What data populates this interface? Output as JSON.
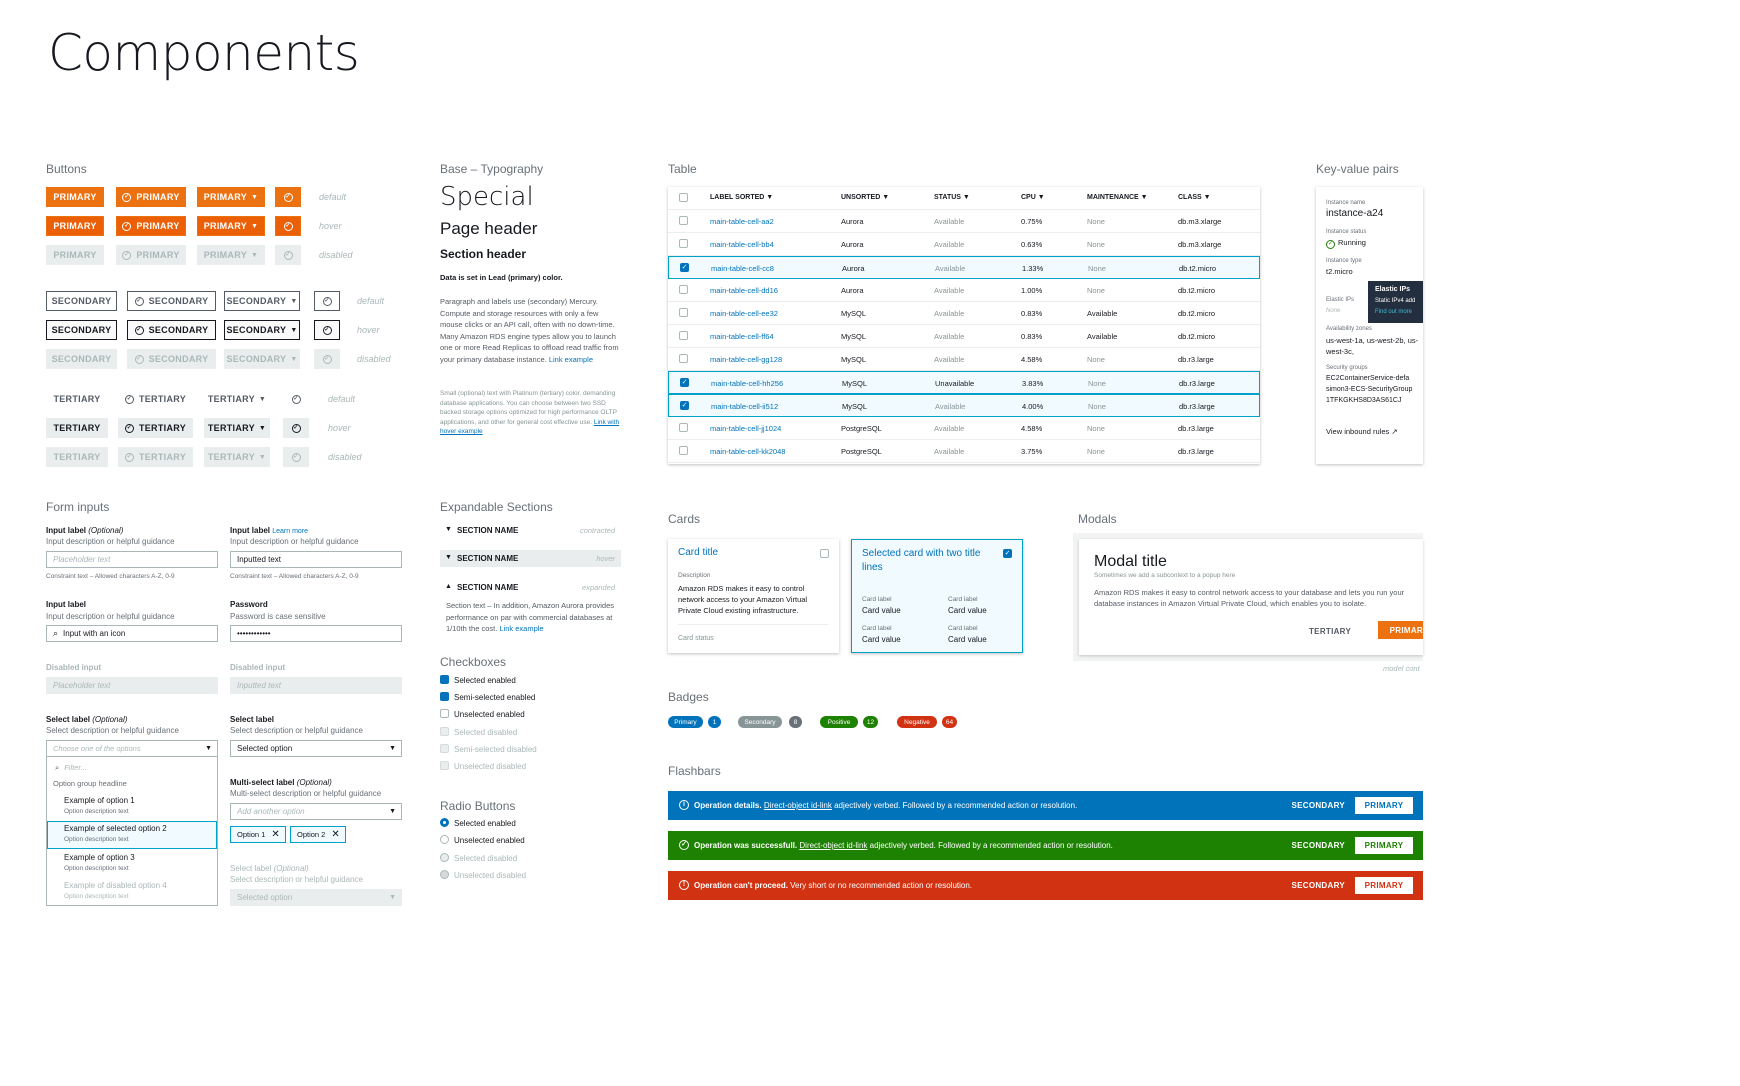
{
  "page_title": "Components",
  "sections": {
    "buttons": "Buttons",
    "typography": "Base – Typography",
    "table": "Table",
    "kv": "Key-value pairs",
    "form_inputs": "Form inputs",
    "expandable": "Expandable Sections",
    "checkboxes": "Checkboxes",
    "radio": "Radio Buttons",
    "cards": "Cards",
    "modals": "Modals",
    "badges": "Badges",
    "flashbars": "Flashbars"
  },
  "buttons": {
    "primary": "PRIMARY",
    "secondary": "SECONDARY",
    "tertiary": "TERTIARY",
    "states": {
      "default": "default",
      "hover": "hover",
      "disabled": "disabled"
    }
  },
  "typography": {
    "special": "Special",
    "page_header": "Page header",
    "section_header": "Section header",
    "lead": "Data is set in Lead (primary) color.",
    "para": "Paragraph and labels use (secondary) Mercury. Compute and storage resources with only a few mouse clicks or an API call, often with no down-time. Many Amazon RDS engine types allow you to launch one or more Read Replicas to offload read traffic from your primary database instance.",
    "para_link": "Link example",
    "small": "Small (optional) text with Platinum (tertiary) color. demanding database applications. You can choose between two SSD backed storage options optimized for high performance OLTP applications, and other for general cost effective use.",
    "small_link": "Link with hover example"
  },
  "table": {
    "headers": [
      "LABEL SORTED ▼",
      "UNSORTED ▼",
      "STATUS ▼",
      "CPU ▼",
      "MAINTENANCE ▼",
      "CLASS ▼"
    ],
    "rows": [
      {
        "name": "main-table-cell-aa2",
        "engine": "Aurora",
        "status": "Available",
        "cpu": "0.75%",
        "maint": "None",
        "cls": "db.m3.xlarge",
        "sel": false
      },
      {
        "name": "main-table-cell-bb4",
        "engine": "Aurora",
        "status": "Available",
        "cpu": "0.63%",
        "maint": "None",
        "cls": "db.m3.xlarge",
        "sel": false
      },
      {
        "name": "main-table-cell-cc8",
        "engine": "Aurora",
        "status": "Available",
        "cpu": "1.33%",
        "maint": "None",
        "cls": "db.t2.micro",
        "sel": true
      },
      {
        "name": "main-table-cell-dd16",
        "engine": "Aurora",
        "status": "Available",
        "cpu": "1.00%",
        "maint": "None",
        "cls": "db.t2.micro",
        "sel": false
      },
      {
        "name": "main-table-cell-ee32",
        "engine": "MySQL",
        "status": "Available",
        "cpu": "0.83%",
        "maint": "Available",
        "cls": "db.t2.micro",
        "sel": false
      },
      {
        "name": "main-table-cell-ff64",
        "engine": "MySQL",
        "status": "Available",
        "cpu": "0.83%",
        "maint": "Available",
        "cls": "db.t2.micro",
        "sel": false
      },
      {
        "name": "main-table-cell-gg128",
        "engine": "MySQL",
        "status": "Available",
        "cpu": "4.58%",
        "maint": "None",
        "cls": "db.r3.large",
        "sel": false
      },
      {
        "name": "main-table-cell-hh256",
        "engine": "MySQL",
        "status": "Unavailable",
        "cpu": "3.83%",
        "maint": "None",
        "cls": "db.r3.large",
        "sel": true
      },
      {
        "name": "main-table-cell-ii512",
        "engine": "MySQL",
        "status": "Available",
        "cpu": "4.00%",
        "maint": "None",
        "cls": "db.r3.large",
        "sel": true
      },
      {
        "name": "main-table-cell-jj1024",
        "engine": "PostgreSQL",
        "status": "Available",
        "cpu": "4.58%",
        "maint": "None",
        "cls": "db.r3.large",
        "sel": false
      },
      {
        "name": "main-table-cell-kk2048",
        "engine": "PostgreSQL",
        "status": "Available",
        "cpu": "3.75%",
        "maint": "None",
        "cls": "db.r3.large",
        "sel": false
      }
    ]
  },
  "kv": {
    "name_label": "Instance name",
    "name": "instance-a24",
    "status_label": "Instance status",
    "status": "Running",
    "type_label": "Instance type",
    "type": "t2.micro",
    "eip_label": "Elastic IPs",
    "eip_value": "None",
    "tooltip_title": "Elastic IPs",
    "tooltip_text": "Static IPv4 add",
    "tooltip_link": "Find out more",
    "az_label": "Availability zones",
    "az": "us-west-1a, us-west-2b, us-west-3c,",
    "sg_label": "Security groups",
    "sg1": "EC2ContainerService-defa",
    "sg2": "simon3-ECS-SecurityGroup",
    "sg3": "1TFKGKHS8D3AS61CJ",
    "inbound": "View inbound rules"
  },
  "form": {
    "l1": "Input label",
    "l1_opt": "(Optional)",
    "desc": "Input description or helpful guidance",
    "ph": "Placeholder text",
    "constraint": "Constraint text – Allowed characters A-Z, 0-9",
    "l2": "Input label",
    "learn": "Learn more",
    "inputted": "Inputted text",
    "l3": "Input label",
    "icon_input": "Input with an icon",
    "pw_label": "Password",
    "pw_desc": "Password is case sensitive",
    "pw_value": "••••••••••••",
    "dis_label": "Disabled input",
    "dis_label2": "Disabled input",
    "dis_ph": "Placeholder text",
    "dis_inputted": "Inputted text",
    "sel_label": "Select label",
    "sel_opt": "(Optional)",
    "sel_desc": "Select description or helpful guidance",
    "sel_ph": "Choose one of the options",
    "filter": "Filter...",
    "group": "Option group headline",
    "opt1": "Example of option 1",
    "opt_desc": "Option description text",
    "opt2": "Example of selected option 2",
    "opt3": "Example of option 3",
    "opt4": "Example of disabled option 4",
    "sel2_label": "Select label",
    "sel2_value": "Selected option",
    "ms_label": "Multi-select label",
    "ms_opt": "(Optional)",
    "ms_desc": "Multi-select description or helpful guidance",
    "ms_ph": "Add another option",
    "tok1": "Option 1",
    "tok2": "Option 2",
    "sel3_label": "Select label",
    "sel3_opt": "(Optional)",
    "sel3_value": "Selected option"
  },
  "expandable": {
    "name": "SECTION NAME",
    "contracted": "contracted",
    "hover": "hover",
    "expanded": "expanded",
    "text": "Section text – In addition, Amazon Aurora provides performance on par with commercial databases at 1/10th the cost.",
    "link": "Link example"
  },
  "checkboxes": [
    "Selected enabled",
    "Semi-selected enabled",
    "Unselected enabled",
    "Selected disabled",
    "Semi-selected disabled",
    "Unselected disabled"
  ],
  "radios": [
    "Selected enabled",
    "Unselected enabled",
    "Selected disabled",
    "Unselected disabled"
  ],
  "cards": {
    "c1_title": "Card title",
    "c1_desc_label": "Description",
    "c1_desc": "Amazon RDS makes it easy to control network access to your Amazon Virtual Private Cloud existing infrastructure.",
    "c1_status": "Card status",
    "c2_title": "Selected card with two title lines",
    "card_label": "Card label",
    "card_value": "Card value"
  },
  "modal": {
    "title": "Modal title",
    "subtitle": "Sometimes we add a subcontext to a popup here",
    "body": "Amazon RDS makes it easy to control network access to your database and lets you run your database instances in Amazon Virtual Private Cloud, which enables you to isolate.",
    "tertiary": "TERTIARY",
    "primary": "PRIMAR",
    "caption": "model cont"
  },
  "badges": [
    {
      "label": "Primary",
      "count": "1",
      "color": "#0073bb",
      "count_color": "#0073bb"
    },
    {
      "label": "Secondary",
      "count": "8",
      "color": "#879596",
      "count_color": "#687078"
    },
    {
      "label": "Positive",
      "count": "12",
      "color": "#1d8102",
      "count_color": "#1d8102"
    },
    {
      "label": "Negative",
      "count": "64",
      "color": "#d13212",
      "count_color": "#d13212"
    }
  ],
  "flashbars": [
    {
      "color": "#0073bb",
      "bold": "Operation details.",
      "link": "Direct-object id-link",
      "rest": " adjectively verbed. Followed by a recommended action or resolution.",
      "icon": "i",
      "secondary": "SECONDARY",
      "primary": "PRIMARY"
    },
    {
      "color": "#1d8102",
      "bold": "Operation was successfull.",
      "link": "Direct-object id-link",
      "rest": " adjectively verbed. Followed by a recommended action or resolution.",
      "icon": "✓",
      "secondary": "SECONDARY",
      "primary": "PRIMARY"
    },
    {
      "color": "#d13212",
      "bold": "Operation can't proceed.",
      "link": "",
      "rest": " Very short or no recommended action or resolution.",
      "icon": "!",
      "secondary": "SECONDARY",
      "primary": "PRIMARY"
    }
  ],
  "colors": {
    "primary": "#ec7211",
    "link": "#0073bb",
    "selected_border": "#00a1c9"
  }
}
